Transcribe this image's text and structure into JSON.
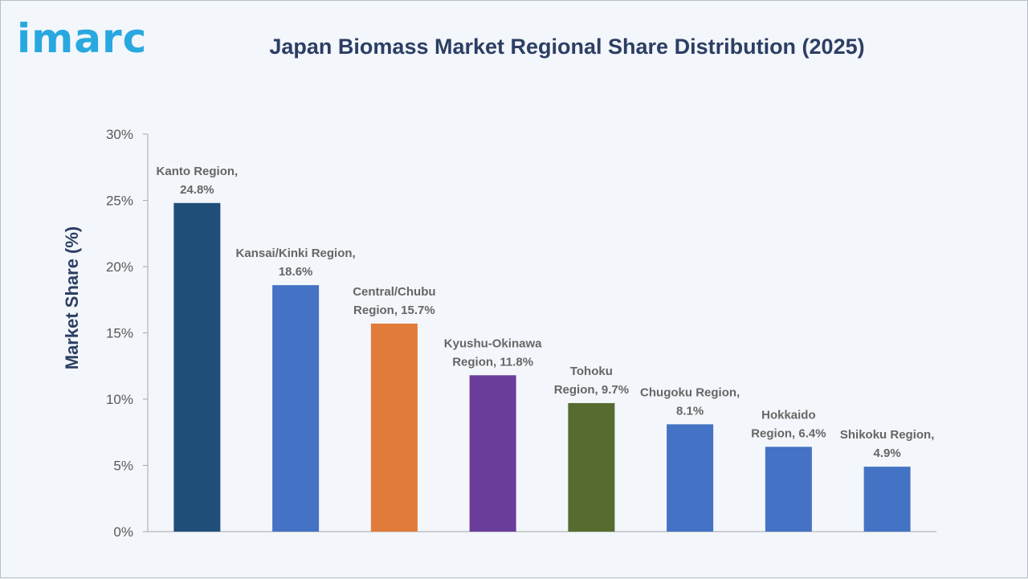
{
  "brand": {
    "logo_text": "imarc",
    "logo_color": "#29a8e0"
  },
  "chart_data": {
    "type": "bar",
    "title": "Japan Biomass Market Regional Share Distribution (2025)",
    "ylabel": "Market Share (%)",
    "xlabel": "",
    "ylim": [
      0,
      30
    ],
    "yticks": [
      "0%",
      "5%",
      "10%",
      "15%",
      "20%",
      "25%",
      "30%"
    ],
    "ytick_values": [
      0,
      5,
      10,
      15,
      20,
      25,
      30
    ],
    "categories": [
      "Kanto Region",
      "Kansai/Kinki Region",
      "Central/Chubu Region",
      "Kyushu-Okinawa Region",
      "Tohoku Region",
      "Chugoku Region",
      "Hokkaido Region",
      "Shikoku Region"
    ],
    "values": [
      24.8,
      18.6,
      15.7,
      11.8,
      9.7,
      8.1,
      6.4,
      4.9
    ],
    "labels": [
      [
        "Kanto Region,",
        "24.8%"
      ],
      [
        "Kansai/Kinki Region,",
        "18.6%"
      ],
      [
        "Central/Chubu",
        "Region, 15.7%"
      ],
      [
        "Kyushu-Okinawa",
        "Region, 11.8%"
      ],
      [
        "Tohoku",
        "Region, 9.7%"
      ],
      [
        "Chugoku Region,",
        "8.1%"
      ],
      [
        "Hokkaido",
        "Region, 6.4%"
      ],
      [
        "Shikoku Region,",
        "4.9%"
      ]
    ],
    "colors": [
      "#1f4e79",
      "#4472c4",
      "#e07b39",
      "#6a3d9a",
      "#556b2f",
      "#4472c4",
      "#4472c4",
      "#4472c4"
    ],
    "grid": false,
    "legend": "none"
  }
}
